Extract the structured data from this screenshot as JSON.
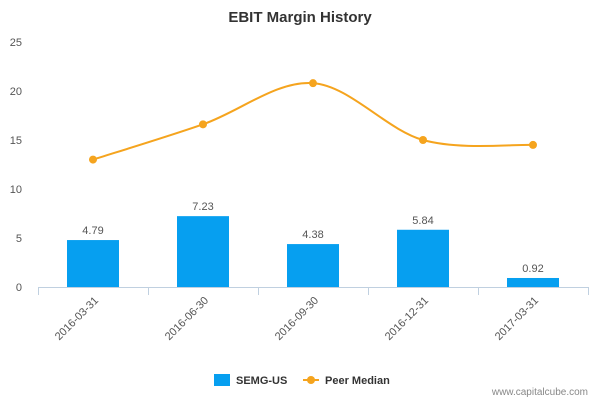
{
  "chart_data": {
    "type": "bar",
    "title": "EBIT Margin History",
    "categories": [
      "2016-03-31",
      "2016-06-30",
      "2016-09-30",
      "2016-12-31",
      "2017-03-31"
    ],
    "series": [
      {
        "name": "SEMG-US",
        "type": "bar",
        "values": [
          4.79,
          7.23,
          4.38,
          5.84,
          0.92
        ],
        "data_labels": [
          "4.79",
          "7.23",
          "4.38",
          "5.84",
          "0.92"
        ],
        "color": "#069ff0"
      },
      {
        "name": "Peer Median",
        "type": "line",
        "values": [
          13.0,
          16.6,
          20.8,
          15.0,
          14.5
        ],
        "color": "#f5a41e"
      }
    ],
    "y_ticks": [
      "0",
      "5",
      "10",
      "15",
      "20",
      "25"
    ],
    "ylim": [
      0,
      25
    ],
    "grid": false,
    "legend_position": "bottom-center"
  },
  "watermark": "www.capitalcube.com"
}
